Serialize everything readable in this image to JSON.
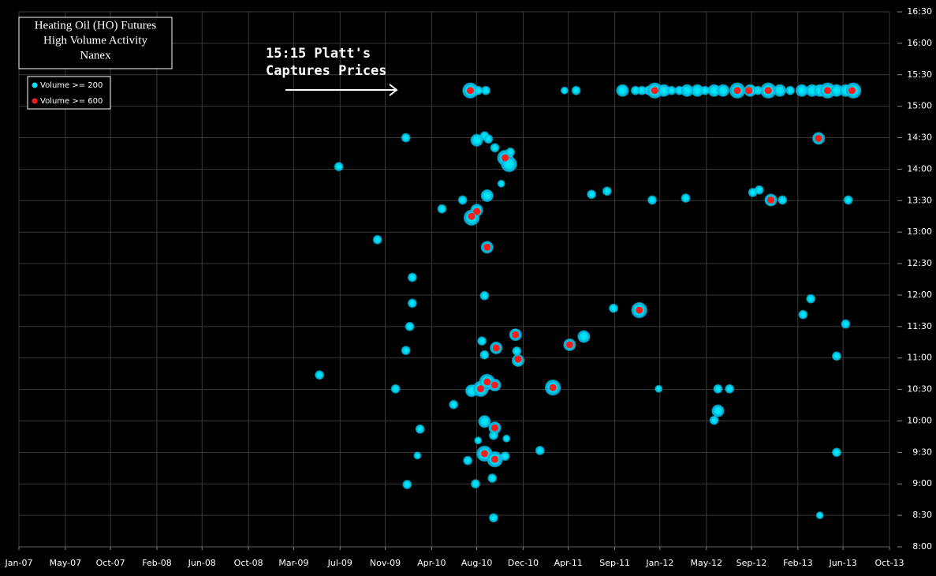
{
  "chart_data": {
    "type": "bubble",
    "title_lines": [
      "Heating Oil (HO) Futures",
      "High Volume Activity",
      "Nanex"
    ],
    "annotation_lines": [
      "15:15 Platt's",
      "Captures Prices"
    ],
    "xlim": [
      2007,
      2013.75
    ],
    "xticks": [
      {
        "value": 2007,
        "label": "Jan-07"
      },
      {
        "value": 2007.36,
        "label": "May-07"
      },
      {
        "value": 2007.71,
        "label": "Oct-07"
      },
      {
        "value": 2008.07,
        "label": "Feb-08"
      },
      {
        "value": 2008.42,
        "label": "Jun-08"
      },
      {
        "value": 2008.78,
        "label": "Oct-08"
      },
      {
        "value": 2009.13,
        "label": "Mar-09"
      },
      {
        "value": 2009.49,
        "label": "Jul-09"
      },
      {
        "value": 2009.84,
        "label": "Nov-09"
      },
      {
        "value": 2010.2,
        "label": "Apr-10"
      },
      {
        "value": 2010.55,
        "label": "Aug-10"
      },
      {
        "value": 2010.91,
        "label": "Dec-10"
      },
      {
        "value": 2011.26,
        "label": "Apr-11"
      },
      {
        "value": 2011.62,
        "label": "Sep-11"
      },
      {
        "value": 2011.97,
        "label": "Jan-12"
      },
      {
        "value": 2012.33,
        "label": "May-12"
      },
      {
        "value": 2012.68,
        "label": "Sep-12"
      },
      {
        "value": 2013.04,
        "label": "Feb-13"
      },
      {
        "value": 2013.39,
        "label": "Jun-13"
      },
      {
        "value": 2013.75,
        "label": "Oct-13"
      }
    ],
    "ylim": [
      8,
      16.5
    ],
    "yticks": [
      {
        "value": 8,
        "label": "8:00"
      },
      {
        "value": 8.5,
        "label": "8:30"
      },
      {
        "value": 9,
        "label": "9:00"
      },
      {
        "value": 9.5,
        "label": "9:30"
      },
      {
        "value": 10,
        "label": "10:00"
      },
      {
        "value": 10.5,
        "label": "10:30"
      },
      {
        "value": 11,
        "label": "11:00"
      },
      {
        "value": 11.5,
        "label": "11:30"
      },
      {
        "value": 12,
        "label": "12:00"
      },
      {
        "value": 12.5,
        "label": "12:30"
      },
      {
        "value": 13,
        "label": "13:00"
      },
      {
        "value": 13.5,
        "label": "13:30"
      },
      {
        "value": 14,
        "label": "14:00"
      },
      {
        "value": 14.5,
        "label": "14:30"
      },
      {
        "value": 15,
        "label": "15:00"
      },
      {
        "value": 15.5,
        "label": "15:30"
      },
      {
        "value": 16,
        "label": "16:00"
      },
      {
        "value": 16.5,
        "label": "16:30"
      }
    ],
    "grid": true,
    "legend": "upper left",
    "series": [
      {
        "name": "Volume >= 200",
        "color": "#00e0ff",
        "x": [
          2010.5,
          2010.56,
          2010.62,
          2011.23,
          2011.32,
          2011.68,
          2011.78,
          2011.83,
          2011.88,
          2011.93,
          2012.0,
          2012.06,
          2012.12,
          2012.18,
          2012.26,
          2012.32,
          2012.39,
          2012.46,
          2012.57,
          2012.67,
          2012.73,
          2012.81,
          2012.9,
          2012.98,
          2013.07,
          2013.15,
          2013.21,
          2013.27,
          2013.34,
          2013.41,
          2013.47,
          2010.0,
          2009.48,
          2010.55,
          2010.61,
          2010.64,
          2010.69,
          2010.77,
          2010.8,
          2010.81,
          2010.74,
          2010.63,
          2010.44,
          2010.55,
          2010.51,
          2010.28,
          2011.44,
          2011.56,
          2011.91,
          2012.17,
          2012.69,
          2012.74,
          2012.83,
          2012.92,
          2013.43,
          2013.2,
          2009.78,
          2010.63,
          2010.05,
          2010.61,
          2010.05,
          2011.61,
          2011.81,
          2013.14,
          2010.03,
          2013.08,
          2013.41,
          2010.0,
          2010.59,
          2010.7,
          2010.85,
          2011.38,
          2011.27,
          2010.86,
          2010.87,
          2010.61,
          2013.34,
          2009.33,
          2009.92,
          2010.51,
          2010.58,
          2010.63,
          2010.69,
          2011.14,
          2011.96,
          2012.42,
          2012.51,
          2010.37,
          2012.42,
          2012.39,
          2010.61,
          2010.69,
          2010.68,
          2010.11,
          2010.56,
          2010.78,
          2010.61,
          2010.69,
          2010.77,
          2010.48,
          2010.09,
          2011.04,
          2013.34,
          2010.54,
          2010.67,
          2010.01,
          2010.68,
          2013.21
        ],
        "values": [
          15.25,
          15.25,
          15.25,
          15.25,
          15.25,
          15.25,
          15.25,
          15.25,
          15.25,
          15.25,
          15.25,
          15.25,
          15.25,
          15.25,
          15.25,
          15.25,
          15.25,
          15.25,
          15.25,
          15.25,
          15.25,
          15.25,
          15.25,
          15.25,
          15.25,
          15.25,
          15.25,
          15.25,
          15.25,
          15.25,
          15.25,
          14.5,
          14.04,
          14.46,
          14.53,
          14.48,
          14.34,
          14.18,
          14.08,
          14.27,
          13.77,
          13.58,
          13.51,
          13.35,
          13.23,
          13.37,
          13.6,
          13.65,
          13.51,
          13.54,
          13.63,
          13.67,
          13.51,
          13.51,
          13.51,
          14.49,
          12.88,
          12.76,
          12.28,
          11.99,
          11.87,
          11.79,
          11.76,
          11.94,
          11.5,
          11.69,
          11.54,
          11.12,
          11.27,
          11.16,
          11.37,
          11.34,
          11.21,
          11.11,
          10.96,
          11.05,
          11.03,
          10.73,
          10.51,
          10.48,
          10.51,
          10.62,
          10.57,
          10.53,
          10.51,
          10.51,
          10.51,
          10.26,
          10.16,
          10.01,
          9.99,
          9.89,
          9.77,
          9.87,
          9.69,
          9.72,
          9.48,
          9.39,
          9.44,
          9.37,
          9.45,
          9.53,
          9.5,
          9,
          9.09,
          8.99,
          8.46,
          8.5
        ],
        "sizes": [
          1000,
          300,
          300,
          200,
          300,
          600,
          300,
          300,
          300,
          1000,
          600,
          300,
          300,
          600,
          600,
          300,
          600,
          600,
          1000,
          600,
          300,
          1000,
          600,
          300,
          600,
          600,
          600,
          1000,
          600,
          600,
          1000,
          300,
          300,
          600,
          300,
          300,
          300,
          1000,
          1000,
          300,
          200,
          600,
          300,
          600,
          1000,
          300,
          300,
          300,
          300,
          300,
          300,
          300,
          600,
          300,
          300,
          600,
          300,
          600,
          300,
          300,
          300,
          300,
          1000,
          300,
          300,
          300,
          300,
          300,
          300,
          600,
          600,
          600,
          600,
          300,
          600,
          300,
          300,
          300,
          300,
          600,
          1000,
          1000,
          600,
          1000,
          200,
          300,
          300,
          300,
          600,
          300,
          600,
          600,
          300,
          300,
          200,
          200,
          1000,
          1000,
          300,
          300,
          200,
          300,
          300,
          300,
          300,
          300,
          300,
          200
        ]
      },
      {
        "name": "Volume >= 600",
        "color": "#ff1a1a",
        "x": [
          2010.5,
          2011.93,
          2012.57,
          2012.66,
          2012.81,
          2013.27,
          2013.46,
          2013.2,
          2010.77,
          2010.55,
          2010.51,
          2010.63,
          2011.81,
          2010.7,
          2010.85,
          2011.27,
          2010.87,
          2010.58,
          2010.63,
          2010.69,
          2011.14,
          2010.69,
          2010.61,
          2010.69,
          2012.83
        ],
        "values": [
          15.25,
          15.25,
          15.25,
          15.25,
          15.25,
          15.25,
          15.25,
          14.49,
          14.18,
          13.33,
          13.25,
          12.76,
          11.76,
          11.16,
          11.37,
          11.21,
          10.98,
          10.51,
          10.62,
          10.57,
          10.53,
          9.89,
          9.48,
          9.39,
          13.51
        ]
      }
    ]
  }
}
